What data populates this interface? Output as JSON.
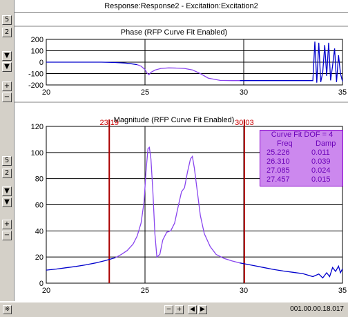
{
  "window": {
    "header": "Response:Response2 - Excitation:Excitation2",
    "status": "001.00.00.18.017"
  },
  "toolbar": {
    "phase_buttons": [
      "5",
      "2",
      "▼",
      "▼",
      "+",
      "−"
    ],
    "mag_buttons": [
      "5",
      "2",
      "▼",
      "▼",
      "+",
      "−"
    ],
    "status_buttons": [
      "−",
      "+",
      "◀",
      "▶"
    ],
    "corner_icon": "※"
  },
  "chart_data": [
    {
      "id": "phase",
      "type": "line",
      "title": "Phase (RFP Curve Fit Enabled)",
      "xlim": [
        20,
        35
      ],
      "ylim": [
        -200,
        200
      ],
      "xticks": [
        20,
        25,
        30,
        35
      ],
      "yticks": [
        200,
        100,
        0,
        -100,
        -200
      ],
      "grid": true,
      "series": [
        {
          "color": "#0000cc",
          "x": [
            20,
            21,
            22,
            22.8,
            23.5,
            24,
            24.3,
            24.6
          ],
          "y": [
            0,
            0,
            0,
            0,
            -3,
            -8,
            -14,
            -22
          ]
        },
        {
          "color": "#8844ee",
          "x": [
            24.6,
            24.8,
            25.0,
            25.1,
            25.2,
            25.3,
            25.5,
            25.8,
            26.2,
            26.6,
            27.0,
            27.4,
            27.8,
            28.2,
            28.8,
            29.4,
            29.8
          ],
          "y": [
            -22,
            -35,
            -65,
            -95,
            -110,
            -90,
            -70,
            -55,
            -50,
            -52,
            -55,
            -68,
            -100,
            -140,
            -160,
            -162,
            -162
          ]
        },
        {
          "color": "#0000cc",
          "x": [
            29.8,
            31,
            32,
            33,
            33.3,
            33.5,
            33.6,
            33.7,
            33.8,
            33.9,
            34.0,
            34.1,
            34.2,
            34.3,
            34.4,
            34.5,
            34.6,
            34.7,
            34.8,
            34.9,
            35.0
          ],
          "y": [
            -162,
            -162,
            -162,
            -162,
            -162,
            -162,
            180,
            -180,
            170,
            -175,
            -90,
            150,
            -120,
            170,
            -160,
            -30,
            120,
            -175,
            60,
            -100,
            -170
          ]
        }
      ]
    },
    {
      "id": "magnitude",
      "type": "line",
      "title": "Magnitude (RFP Curve Fit Enabled)",
      "xlim": [
        20,
        35
      ],
      "ylim": [
        0,
        120
      ],
      "xticks": [
        20,
        25,
        30,
        35
      ],
      "yticks": [
        0,
        20,
        40,
        60,
        80,
        100,
        120
      ],
      "grid": true,
      "cursors": [
        {
          "x": 23.19,
          "label": "23.19"
        },
        {
          "x": 30.03,
          "label": "30.03"
        }
      ],
      "series": [
        {
          "color": "#0000cc",
          "x": [
            20,
            20.5,
            21,
            21.5,
            22,
            22.5,
            23.0,
            23.5
          ],
          "y": [
            10,
            10.8,
            11.8,
            12.8,
            14,
            15.5,
            17.3,
            19.5
          ]
        },
        {
          "color": "#8844ee",
          "x": [
            23.5,
            23.8,
            24.1,
            24.4,
            24.6,
            24.8,
            24.95,
            25.05,
            25.15,
            25.22,
            25.3,
            25.4,
            25.5,
            25.6,
            25.75,
            25.9,
            26.1,
            26.3,
            26.5,
            26.7,
            26.85,
            27.0,
            27.15,
            27.3,
            27.4,
            27.5,
            27.65,
            27.8,
            28.0,
            28.3,
            28.6,
            29.0,
            29.4,
            29.8
          ],
          "y": [
            19.5,
            22,
            25,
            30,
            36,
            46,
            62,
            85,
            103,
            104,
            95,
            70,
            38,
            20,
            22,
            33,
            39,
            40,
            46,
            60,
            70,
            73,
            85,
            95,
            97,
            88,
            70,
            52,
            38,
            28,
            22,
            19,
            17,
            15.5
          ]
        },
        {
          "color": "#0000cc",
          "x": [
            29.8,
            30.5,
            31,
            31.5,
            32,
            32.5,
            33,
            33.5,
            33.8,
            34.0,
            34.2,
            34.35,
            34.5,
            34.65,
            34.8,
            34.9,
            35.0
          ],
          "y": [
            15.5,
            13.5,
            12,
            10.5,
            9.3,
            8.3,
            7.3,
            5,
            7,
            4,
            8,
            5,
            12,
            9,
            13,
            8,
            11
          ]
        }
      ],
      "legend": {
        "title": "Curve Fit DOF = 4",
        "columns": [
          "Freq",
          "Damp"
        ],
        "rows": [
          [
            "25.226",
            "0.011"
          ],
          [
            "26.310",
            "0.039"
          ],
          [
            "27.085",
            "0.024"
          ],
          [
            "27.457",
            "0.015"
          ]
        ]
      }
    }
  ]
}
